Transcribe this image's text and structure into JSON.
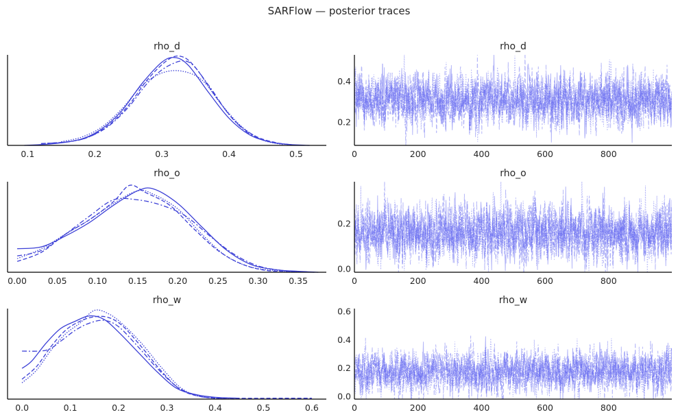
{
  "figure_title": "SARFlow — posterior traces",
  "colors": {
    "line": "#3b3fd6",
    "trace": "#5a5ff0",
    "axis": "#000000",
    "text": "#262626"
  },
  "chart_data": [
    {
      "type": "line",
      "kind": "density",
      "title": "rho_d",
      "xlim": [
        0.07,
        0.545
      ],
      "ylim": [
        0,
        1
      ],
      "xticks": [
        0.1,
        0.2,
        0.3,
        0.4,
        0.5
      ],
      "xtick_labels": [
        "0.1",
        "0.2",
        "0.3",
        "0.4",
        "0.5"
      ],
      "chain_styles": [
        "solid",
        "dashed",
        "dashdot",
        "dotted"
      ],
      "series": [
        {
          "x": [
            0.095,
            0.14,
            0.18,
            0.21,
            0.24,
            0.27,
            0.3,
            0.32,
            0.34,
            0.37,
            0.4,
            0.43,
            0.46,
            0.49,
            0.52
          ],
          "values": [
            0.0,
            0.02,
            0.07,
            0.18,
            0.38,
            0.68,
            0.92,
            0.97,
            0.88,
            0.58,
            0.3,
            0.12,
            0.04,
            0.01,
            0.0
          ]
        },
        {
          "x": [
            0.12,
            0.16,
            0.19,
            0.22,
            0.25,
            0.28,
            0.31,
            0.33,
            0.35,
            0.38,
            0.41,
            0.44,
            0.47,
            0.5
          ],
          "values": [
            0.02,
            0.04,
            0.09,
            0.22,
            0.44,
            0.74,
            0.95,
            0.98,
            0.86,
            0.54,
            0.26,
            0.1,
            0.03,
            0.0
          ]
        },
        {
          "x": [
            0.12,
            0.16,
            0.19,
            0.22,
            0.25,
            0.28,
            0.31,
            0.34,
            0.37,
            0.4,
            0.43,
            0.46,
            0.49
          ],
          "values": [
            0.02,
            0.04,
            0.09,
            0.21,
            0.42,
            0.7,
            0.88,
            0.92,
            0.66,
            0.34,
            0.13,
            0.04,
            0.01
          ]
        },
        {
          "x": [
            0.15,
            0.18,
            0.21,
            0.24,
            0.27,
            0.3,
            0.33,
            0.36,
            0.39,
            0.42,
            0.45,
            0.48
          ],
          "values": [
            0.04,
            0.09,
            0.2,
            0.4,
            0.66,
            0.8,
            0.82,
            0.72,
            0.44,
            0.2,
            0.06,
            0.01
          ]
        }
      ]
    },
    {
      "type": "line",
      "kind": "trace",
      "title": "rho_d",
      "xlim": [
        0,
        999
      ],
      "ylim": [
        0.085,
        0.53
      ],
      "center": 0.31,
      "spread": 0.065,
      "xticks": [
        0,
        200,
        400,
        600,
        800
      ],
      "xtick_labels": [
        "0",
        "200",
        "400",
        "600",
        "800"
      ],
      "yticks": [
        0.2,
        0.4
      ],
      "ytick_labels": [
        "0.2",
        "0.4"
      ]
    },
    {
      "type": "line",
      "kind": "density",
      "title": "rho_o",
      "xlim": [
        -0.012,
        0.385
      ],
      "ylim": [
        0,
        1
      ],
      "xticks": [
        0.0,
        0.05,
        0.1,
        0.15,
        0.2,
        0.25,
        0.3,
        0.35
      ],
      "xtick_labels": [
        "0.00",
        "0.05",
        "0.10",
        "0.15",
        "0.20",
        "0.25",
        "0.30",
        "0.35"
      ],
      "chain_styles": [
        "solid",
        "dashed",
        "dashdot",
        "dotted"
      ],
      "series": [
        {
          "x": [
            0.0,
            0.03,
            0.06,
            0.09,
            0.12,
            0.15,
            0.17,
            0.2,
            0.23,
            0.26,
            0.29,
            0.32,
            0.35,
            0.375
          ],
          "values": [
            0.26,
            0.28,
            0.4,
            0.55,
            0.74,
            0.9,
            0.92,
            0.76,
            0.5,
            0.25,
            0.09,
            0.03,
            0.01,
            0.0
          ]
        },
        {
          "x": [
            0.0,
            0.03,
            0.06,
            0.09,
            0.12,
            0.14,
            0.16,
            0.19,
            0.22,
            0.25,
            0.28,
            0.31,
            0.34,
            0.37
          ],
          "values": [
            0.12,
            0.22,
            0.42,
            0.58,
            0.78,
            0.96,
            0.88,
            0.74,
            0.48,
            0.24,
            0.09,
            0.02,
            0.01,
            0.0
          ]
        },
        {
          "x": [
            0.0,
            0.03,
            0.06,
            0.09,
            0.12,
            0.15,
            0.18,
            0.21,
            0.24,
            0.27,
            0.3,
            0.33,
            0.36
          ],
          "values": [
            0.18,
            0.24,
            0.42,
            0.62,
            0.8,
            0.8,
            0.74,
            0.62,
            0.4,
            0.2,
            0.07,
            0.02,
            0.0
          ]
        },
        {
          "x": [
            0.0,
            0.03,
            0.06,
            0.09,
            0.12,
            0.15,
            0.17,
            0.2,
            0.23,
            0.26,
            0.29,
            0.32,
            0.35
          ],
          "values": [
            0.15,
            0.26,
            0.42,
            0.58,
            0.76,
            0.9,
            0.86,
            0.7,
            0.42,
            0.18,
            0.06,
            0.02,
            0.0
          ]
        }
      ]
    },
    {
      "type": "line",
      "kind": "trace",
      "title": "rho_o",
      "xlim": [
        0,
        999
      ],
      "ylim": [
        -0.015,
        0.385
      ],
      "center": 0.16,
      "spread": 0.063,
      "xticks": [
        0,
        200,
        400,
        600,
        800
      ],
      "xtick_labels": [
        "0",
        "200",
        "400",
        "600",
        "800"
      ],
      "yticks": [
        0.0,
        0.2
      ],
      "ytick_labels": [
        "0.0",
        "0.2"
      ]
    },
    {
      "type": "line",
      "kind": "density",
      "title": "rho_w",
      "xlim": [
        -0.03,
        0.63
      ],
      "ylim": [
        0,
        1
      ],
      "xticks": [
        0.0,
        0.1,
        0.2,
        0.3,
        0.4,
        0.5,
        0.6
      ],
      "xtick_labels": [
        "0.0",
        "0.1",
        "0.2",
        "0.3",
        "0.4",
        "0.5",
        "0.6"
      ],
      "chain_styles": [
        "solid",
        "dashed",
        "dashdot",
        "dotted"
      ],
      "series": [
        {
          "x": [
            0.0,
            0.02,
            0.05,
            0.08,
            0.11,
            0.14,
            0.17,
            0.2,
            0.24,
            0.28,
            0.32,
            0.36,
            0.4,
            0.45
          ],
          "values": [
            0.34,
            0.42,
            0.62,
            0.78,
            0.86,
            0.92,
            0.88,
            0.74,
            0.52,
            0.3,
            0.12,
            0.05,
            0.02,
            0.01
          ]
        },
        {
          "x": [
            0.0,
            0.03,
            0.06,
            0.09,
            0.12,
            0.15,
            0.18,
            0.21,
            0.25,
            0.29,
            0.33,
            0.38,
            0.45,
            0.52,
            0.6
          ],
          "values": [
            0.22,
            0.36,
            0.58,
            0.76,
            0.86,
            0.91,
            0.9,
            0.8,
            0.56,
            0.3,
            0.1,
            0.02,
            0.01,
            0.01,
            0.01
          ]
        },
        {
          "x": [
            0.0,
            0.05,
            0.08,
            0.11,
            0.14,
            0.17,
            0.2,
            0.24,
            0.28,
            0.32,
            0.36,
            0.4,
            0.44
          ],
          "values": [
            0.53,
            0.54,
            0.64,
            0.76,
            0.84,
            0.87,
            0.8,
            0.58,
            0.34,
            0.14,
            0.04,
            0.01,
            0.0
          ]
        },
        {
          "x": [
            0.0,
            0.03,
            0.06,
            0.09,
            0.12,
            0.15,
            0.18,
            0.21,
            0.25,
            0.29,
            0.33,
            0.37,
            0.42
          ],
          "values": [
            0.18,
            0.32,
            0.54,
            0.72,
            0.84,
            0.98,
            0.94,
            0.82,
            0.6,
            0.34,
            0.12,
            0.03,
            0.0
          ]
        }
      ]
    },
    {
      "type": "line",
      "kind": "trace",
      "title": "rho_w",
      "xlim": [
        0,
        999
      ],
      "ylim": [
        -0.02,
        0.62
      ],
      "center": 0.17,
      "spread": 0.075,
      "xticks": [
        0,
        200,
        400,
        600,
        800
      ],
      "xtick_labels": [
        "0",
        "200",
        "400",
        "600",
        "800"
      ],
      "yticks": [
        0.0,
        0.2,
        0.4,
        0.6
      ],
      "ytick_labels": [
        "0.0",
        "0.2",
        "0.4",
        "0.6"
      ]
    }
  ]
}
